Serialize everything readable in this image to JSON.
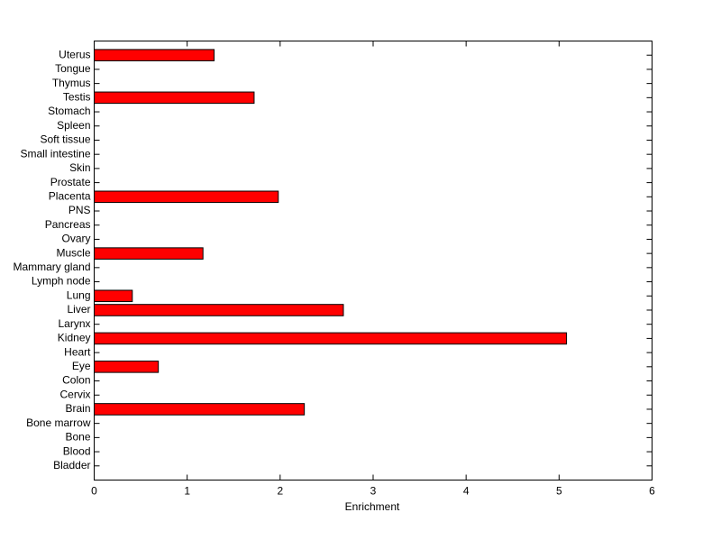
{
  "chart_data": {
    "type": "barh",
    "xlabel": "Enrichment",
    "categories": [
      "Bladder",
      "Blood",
      "Bone",
      "Bone marrow",
      "Brain",
      "Cervix",
      "Colon",
      "Eye",
      "Heart",
      "Kidney",
      "Larynx",
      "Liver",
      "Lung",
      "Lymph node",
      "Mammary gland",
      "Muscle",
      "Ovary",
      "Pancreas",
      "PNS",
      "Placenta",
      "Prostate",
      "Skin",
      "Small intestine",
      "Soft tissue",
      "Spleen",
      "Stomach",
      "Testis",
      "Thymus",
      "Tongue",
      "Uterus"
    ],
    "values": [
      0,
      0,
      0,
      0,
      2.26,
      0,
      0,
      0.69,
      0,
      5.08,
      0,
      2.68,
      0.41,
      0,
      0,
      1.17,
      0,
      0,
      0,
      1.98,
      0,
      0,
      0,
      0,
      0,
      0,
      1.72,
      0,
      0,
      1.29
    ],
    "color": "#ff0000",
    "xlim": [
      0,
      6
    ],
    "xticks": [
      0,
      1,
      2,
      3,
      4,
      5,
      6
    ]
  }
}
